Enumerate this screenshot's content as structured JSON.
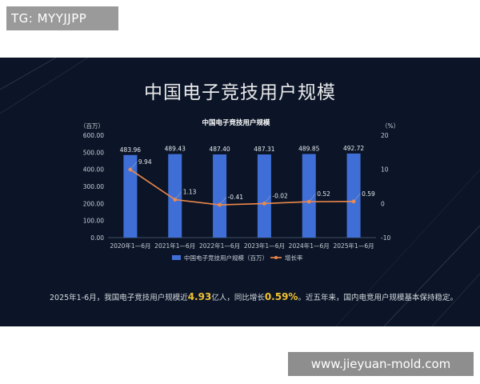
{
  "overlay": {
    "tg_tag": "TG: MYYJJPP",
    "watermark": "www.jieyuan-mold.com"
  },
  "headline": "中国电子竞技用户规模",
  "caption": {
    "part1": "2025年1-6月，我国电子竞技用户规模近",
    "highlight1": "4.93",
    "part2": "亿人，同比增长",
    "highlight2": "0.59%",
    "part3": "。近五年来，国内电竞用户规模基本保持稳定。",
    "highlight_color": "#f2c230"
  },
  "chart_data": {
    "type": "bar",
    "title": "中国电子竞技用户规模",
    "categories": [
      "2020年1—6月",
      "2021年1—6月",
      "2022年1—6月",
      "2023年1—6月",
      "2024年1—6月",
      "2025年1—6月"
    ],
    "left_axis": {
      "unit": "（百万）",
      "range": [
        0,
        600
      ],
      "ticks": [
        "0.00",
        "100.00",
        "200.00",
        "300.00",
        "400.00",
        "500.00",
        "600.00"
      ]
    },
    "right_axis": {
      "unit": "（%）",
      "range": [
        -10,
        20
      ],
      "ticks": [
        "-10",
        "0",
        "10",
        "20"
      ]
    },
    "series": [
      {
        "name": "中国电子竞技用户规模（百万）",
        "kind": "bar",
        "axis": "left",
        "color": "#3f6fd6",
        "values": [
          483.96,
          489.43,
          487.4,
          487.31,
          489.85,
          492.72
        ],
        "labels": [
          "483.96",
          "489.43",
          "487.40",
          "487.31",
          "489.85",
          "492.72"
        ]
      },
      {
        "name": "增长率",
        "kind": "line",
        "axis": "right",
        "color": "#f0884a",
        "values": [
          9.94,
          1.13,
          -0.41,
          -0.02,
          0.52,
          0.59
        ],
        "labels": [
          "9.94",
          "1.13",
          "-0.41",
          "-0.02",
          "0.52",
          "0.59"
        ]
      }
    ],
    "grid": false,
    "legend_position": "bottom-center"
  }
}
